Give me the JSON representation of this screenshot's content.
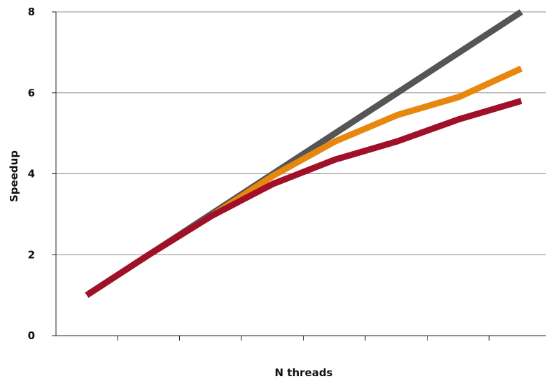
{
  "chart_data": {
    "type": "line",
    "title": "",
    "xlabel": "N threads",
    "ylabel": "Speedup",
    "x": [
      1,
      2,
      3,
      4,
      5,
      6,
      7,
      8
    ],
    "ylim": [
      0,
      8
    ],
    "yticks": [
      0,
      2,
      4,
      6,
      8
    ],
    "ytick_labels": [
      "0",
      "2",
      "4",
      "6",
      "8"
    ],
    "grid": true,
    "series": [
      {
        "color": "#555555",
        "values": [
          1,
          2,
          3,
          4,
          5,
          6,
          7,
          8
        ]
      },
      {
        "color": "#E8870E",
        "values": [
          1,
          2,
          2.95,
          3.95,
          4.8,
          5.45,
          5.9,
          6.6
        ]
      },
      {
        "color": "#A01028",
        "values": [
          1,
          2,
          2.95,
          3.75,
          4.35,
          4.8,
          5.35,
          5.8
        ]
      }
    ]
  }
}
